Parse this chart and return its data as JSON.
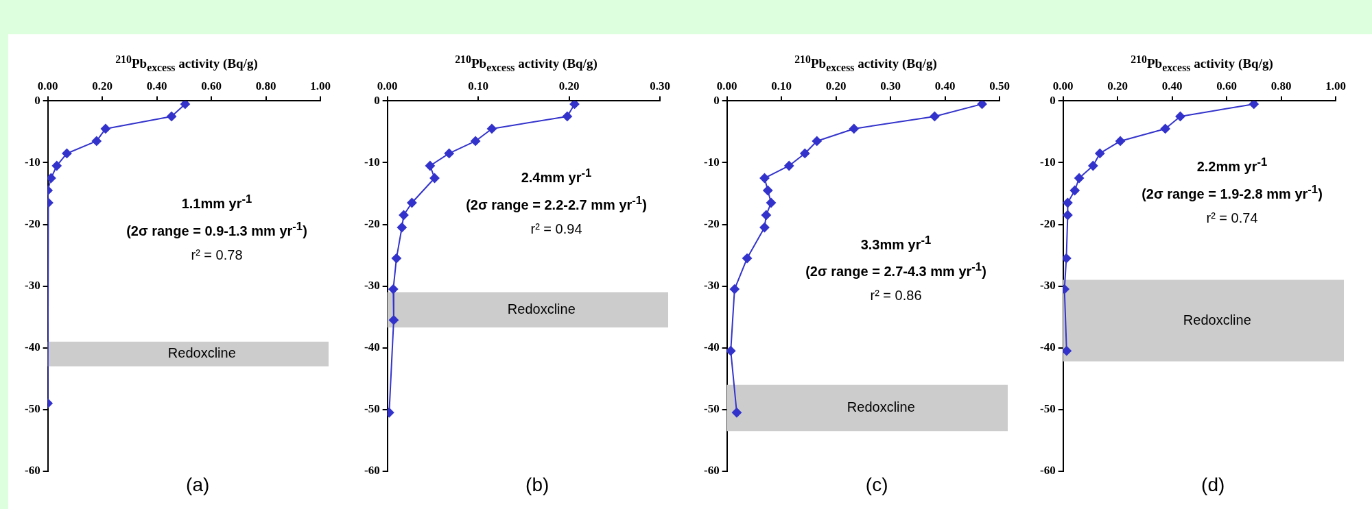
{
  "chart_data": [
    {
      "type": "line",
      "xlabel": "$^{210}$Pb$_{excess}$ activity (Bq/g)",
      "marker": "diamond",
      "series": [
        {
          "color": "#3333cc",
          "x": [
            0.504,
            0.454,
            0.212,
            0.179,
            0.07,
            0.033,
            0.012,
            0,
            0.002,
            0
          ],
          "values": [
            -0.5,
            -2.5,
            -4.5,
            -6.5,
            -8.5,
            -10.5,
            -12.5,
            -14.5,
            -16.5,
            -49
          ]
        }
      ],
      "xlim": [
        0,
        1
      ],
      "xticks": [
        {
          "value": 0,
          "label": "0.00"
        },
        {
          "value": 0.2,
          "label": "0.20"
        },
        {
          "value": 0.4,
          "label": "0.40"
        },
        {
          "value": 0.6,
          "label": "0.60"
        },
        {
          "value": 0.8,
          "label": "0.80"
        },
        {
          "value": 1,
          "label": "1.00"
        }
      ],
      "ylim": [
        -60,
        0
      ],
      "yticks": [
        0,
        -10,
        -20,
        -30,
        -40,
        -50,
        -60
      ],
      "bands": [
        {
          "axis": "y",
          "from": -39,
          "to": -43,
          "label": "Redoxcline",
          "color": "#cccccc"
        }
      ],
      "annotations": [
        "1.1mm yr$^{-1}$",
        "(2σ range = 0.9-1.3 mm yr$^{-1}$)",
        "r² = 0.78",
        "(a)"
      ]
    },
    {
      "type": "line",
      "xlabel": "$^{210}$Pb$_{excess}$ activity (Bq/g)",
      "marker": "diamond",
      "series": [
        {
          "color": "#3333cc",
          "x": [
            0.206,
            0.198,
            0.115,
            0.097,
            0.068,
            0.047,
            0.052,
            0.027,
            0.018,
            0.016,
            0.01,
            0.0065,
            0.007,
            0.002
          ],
          "values": [
            -0.5,
            -2.5,
            -4.5,
            -6.5,
            -8.5,
            -10.5,
            -12.5,
            -16.5,
            -18.5,
            -20.5,
            -25.5,
            -30.5,
            -35.5,
            -50.5
          ]
        }
      ],
      "xlim": [
        0,
        0.3
      ],
      "xticks": [
        {
          "value": 0,
          "label": "0.00"
        },
        {
          "value": 0.1,
          "label": "0.10"
        },
        {
          "value": 0.2,
          "label": "0.20"
        },
        {
          "value": 0.3,
          "label": "0.30"
        }
      ],
      "ylim": [
        -60,
        0
      ],
      "yticks": [
        0,
        -10,
        -20,
        -30,
        -40,
        -50,
        -60
      ],
      "bands": [
        {
          "axis": "y",
          "from": -31,
          "to": -36.7,
          "label": "Redoxcline",
          "color": "#cccccc"
        }
      ],
      "annotations": [
        "2.4mm yr$^{-1}$",
        "(2σ range =  2.2-2.7 mm yr$^{-1}$)",
        "r² = 0.94",
        "(b)"
      ]
    },
    {
      "type": "line",
      "xlabel": "$^{210}$Pb$_{excess}$ activity (Bq/g)",
      "marker": "diamond",
      "series": [
        {
          "color": "#3333cc",
          "x": [
            0.468,
            0.381,
            0.233,
            0.165,
            0.143,
            0.114,
            0.069,
            0.075,
            0.081,
            0.072,
            0.069,
            0.037,
            0.014,
            0.007,
            0.018
          ],
          "values": [
            -0.5,
            -2.5,
            -4.5,
            -6.5,
            -8.5,
            -10.5,
            -12.5,
            -14.5,
            -16.5,
            -18.5,
            -20.5,
            -25.5,
            -30.5,
            -40.5,
            -50.5
          ]
        }
      ],
      "xlim": [
        0,
        0.5
      ],
      "xticks": [
        {
          "value": 0,
          "label": "0.00"
        },
        {
          "value": 0.1,
          "label": "0.10"
        },
        {
          "value": 0.2,
          "label": "0.20"
        },
        {
          "value": 0.3,
          "label": "0.30"
        },
        {
          "value": 0.4,
          "label": "0.40"
        },
        {
          "value": 0.5,
          "label": "0.50"
        }
      ],
      "ylim": [
        -60,
        0
      ],
      "yticks": [
        0,
        -10,
        -20,
        -30,
        -40,
        -50,
        -60
      ],
      "bands": [
        {
          "axis": "y",
          "from": -46,
          "to": -53.5,
          "label": "Redoxcline",
          "color": "#cccccc"
        }
      ],
      "annotations": [
        "3.3mm yr$^{-1}$",
        "(2σ range = 2.7-4.3 mm yr$^{-1}$)",
        "r² = 0.86",
        "(c)"
      ]
    },
    {
      "type": "line",
      "xlabel": "$^{210}$Pb$_{excess}$ activity (Bq/g)",
      "marker": "diamond",
      "series": [
        {
          "color": "#3333cc",
          "x": [
            0.7,
            0.43,
            0.375,
            0.21,
            0.135,
            0.11,
            0.059,
            0.043,
            0.017,
            0.017,
            0.012,
            0.005,
            0.013
          ],
          "values": [
            -0.5,
            -2.5,
            -4.5,
            -6.5,
            -8.5,
            -10.5,
            -12.5,
            -14.5,
            -16.5,
            -18.5,
            -25.5,
            -30.5,
            -40.5
          ]
        }
      ],
      "xlim": [
        0,
        1
      ],
      "xticks": [
        {
          "value": 0,
          "label": "0.00"
        },
        {
          "value": 0.2,
          "label": "0.20"
        },
        {
          "value": 0.4,
          "label": "0.40"
        },
        {
          "value": 0.6,
          "label": "0.60"
        },
        {
          "value": 0.8,
          "label": "0.80"
        },
        {
          "value": 1,
          "label": "1.00"
        }
      ],
      "ylim": [
        -60,
        0
      ],
      "yticks": [
        0,
        -10,
        -20,
        -30,
        -40,
        -50,
        -60
      ],
      "bands": [
        {
          "axis": "y",
          "from": -29,
          "to": -42.2,
          "label": "Redoxcline",
          "color": "#cccccc"
        }
      ],
      "annotations": [
        "2.2mm yr$^{-1}$",
        "(2σ range = 1.9-2.8 mm yr$^{-1}$)",
        "r² = 0.74",
        "(d)"
      ]
    }
  ]
}
